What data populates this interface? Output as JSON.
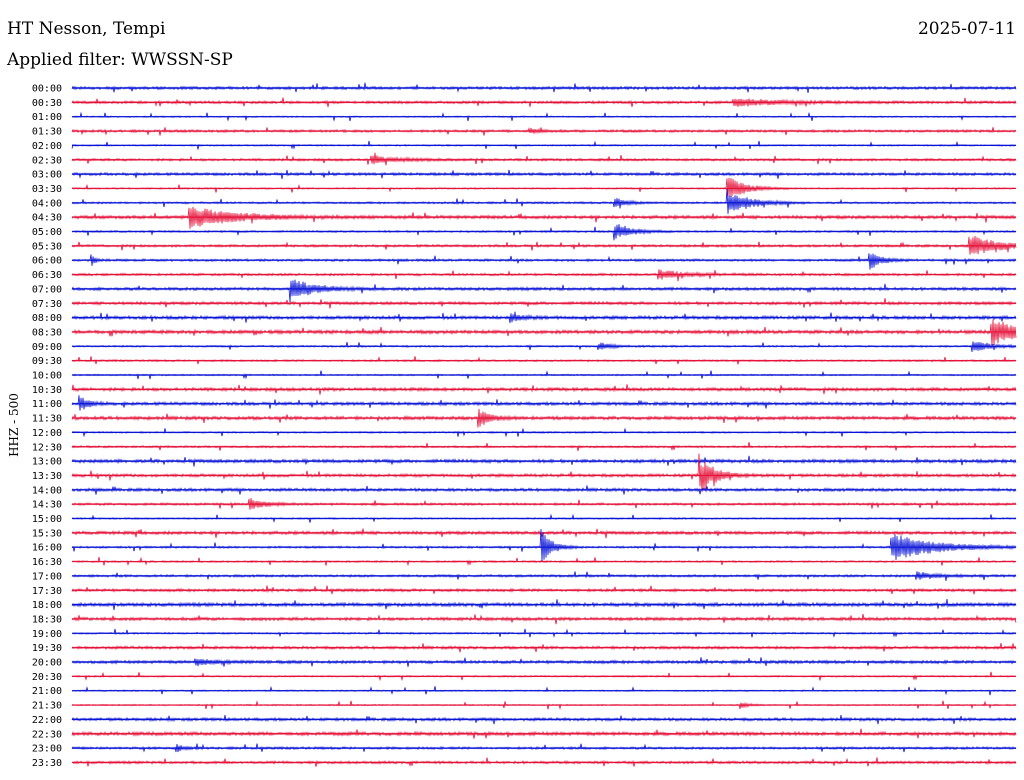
{
  "header": {
    "station": "HT Nesson, Tempi",
    "date": "2025-07-11",
    "filter": "Applied filter: WWSSN-SP"
  },
  "chart_data": {
    "type": "line",
    "title": "HT Nesson, Tempi",
    "subtitle": "Applied filter: WWSSN-SP",
    "date": "2025-07-11",
    "ylabel": "HHZ - 500",
    "xlabel": "",
    "grid": false,
    "legend": "none",
    "colors": {
      "even_hour_trace": "#0a14d6",
      "half_hour_trace": "#e5123a"
    },
    "rows": [
      "00:00",
      "00:30",
      "01:00",
      "01:30",
      "02:00",
      "02:30",
      "03:00",
      "03:30",
      "04:00",
      "04:30",
      "05:00",
      "05:30",
      "06:00",
      "06:30",
      "07:00",
      "07:30",
      "08:00",
      "08:30",
      "09:00",
      "09:30",
      "10:00",
      "10:30",
      "11:00",
      "11:30",
      "12:00",
      "12:30",
      "13:00",
      "13:30",
      "14:00",
      "14:30",
      "15:00",
      "15:30",
      "16:00",
      "16:30",
      "17:00",
      "17:30",
      "18:00",
      "18:30",
      "19:00",
      "19:30",
      "20:00",
      "20:30",
      "21:00",
      "21:30",
      "22:00",
      "22:30",
      "23:00",
      "23:30"
    ],
    "events": [
      {
        "row": "00:30",
        "minute": 21.0,
        "amp": 4,
        "dur": 2.5
      },
      {
        "row": "01:30",
        "minute": 14.5,
        "amp": 3,
        "dur": 0.6
      },
      {
        "row": "02:30",
        "minute": 9.5,
        "amp": 4,
        "dur": 1.5
      },
      {
        "row": "03:30",
        "minute": 20.8,
        "amp": 14,
        "dur": 1.0
      },
      {
        "row": "04:00",
        "minute": 17.2,
        "amp": 7,
        "dur": 0.6
      },
      {
        "row": "04:00",
        "minute": 20.8,
        "amp": 14,
        "dur": 1.2
      },
      {
        "row": "04:30",
        "minute": 3.7,
        "amp": 11,
        "dur": 2.5
      },
      {
        "row": "05:00",
        "minute": 17.2,
        "amp": 10,
        "dur": 0.9
      },
      {
        "row": "05:30",
        "minute": 28.5,
        "amp": 12,
        "dur": 1.5
      },
      {
        "row": "06:00",
        "minute": 0.6,
        "amp": 8,
        "dur": 0.2
      },
      {
        "row": "06:00",
        "minute": 25.3,
        "amp": 12,
        "dur": 0.6
      },
      {
        "row": "06:30",
        "minute": 18.6,
        "amp": 5,
        "dur": 1.5
      },
      {
        "row": "07:00",
        "minute": 6.9,
        "amp": 13,
        "dur": 1.2
      },
      {
        "row": "08:00",
        "minute": 13.9,
        "amp": 5,
        "dur": 0.6
      },
      {
        "row": "08:30",
        "minute": 29.2,
        "amp": 14,
        "dur": 1.5
      },
      {
        "row": "09:00",
        "minute": 16.7,
        "amp": 4,
        "dur": 0.8
      },
      {
        "row": "09:00",
        "minute": 28.6,
        "amp": 6,
        "dur": 1.0
      },
      {
        "row": "11:00",
        "minute": 0.2,
        "amp": 8,
        "dur": 0.5
      },
      {
        "row": "11:30",
        "minute": 12.9,
        "amp": 11,
        "dur": 0.6
      },
      {
        "row": "13:30",
        "minute": 19.9,
        "amp": 22,
        "dur": 0.8
      },
      {
        "row": "14:30",
        "minute": 5.6,
        "amp": 7,
        "dur": 0.8
      },
      {
        "row": "16:00",
        "minute": 14.9,
        "amp": 18,
        "dur": 0.6
      },
      {
        "row": "16:00",
        "minute": 26.0,
        "amp": 14,
        "dur": 2.5
      },
      {
        "row": "17:00",
        "minute": 26.8,
        "amp": 4,
        "dur": 1.2
      },
      {
        "row": "20:00",
        "minute": 3.9,
        "amp": 4,
        "dur": 1.0
      },
      {
        "row": "21:30",
        "minute": 21.2,
        "amp": 4,
        "dur": 0.4
      },
      {
        "row": "23:00",
        "minute": 3.3,
        "amp": 5,
        "dur": 0.3
      }
    ]
  }
}
